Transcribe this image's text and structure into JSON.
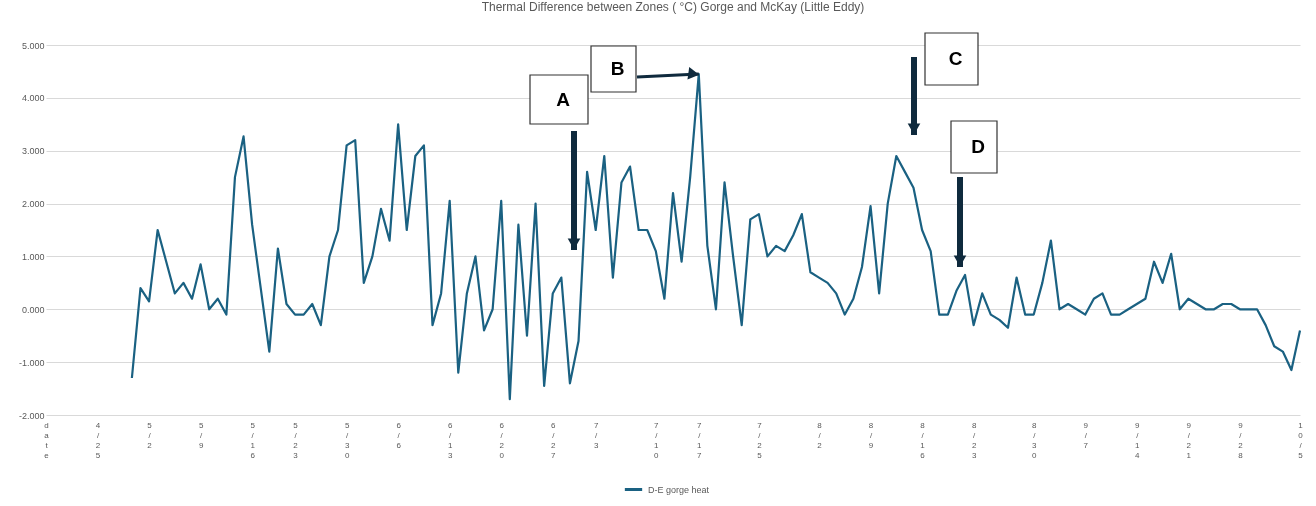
{
  "chart_data": {
    "type": "line",
    "title": "Thermal Difference between Zones ( °C) Gorge and McKay (Little Eddy)",
    "categories": [
      "date",
      null,
      null,
      null,
      null,
      null,
      "4/25",
      null,
      null,
      null,
      null,
      null,
      "5/2",
      null,
      null,
      null,
      null,
      null,
      "5/9",
      null,
      null,
      null,
      null,
      null,
      "5/16",
      null,
      null,
      null,
      null,
      "5/23",
      null,
      null,
      null,
      null,
      null,
      "5/30",
      null,
      null,
      null,
      null,
      null,
      "6/6",
      null,
      null,
      null,
      null,
      null,
      "6/13",
      null,
      null,
      null,
      null,
      null,
      "6/20",
      null,
      null,
      null,
      null,
      null,
      "6/27",
      null,
      null,
      null,
      null,
      "7/3",
      null,
      null,
      null,
      null,
      null,
      null,
      "7/10",
      null,
      null,
      null,
      null,
      "7/17",
      null,
      null,
      null,
      null,
      null,
      null,
      "7/25",
      null,
      null,
      null,
      null,
      null,
      null,
      "8/2",
      null,
      null,
      null,
      null,
      null,
      "8/9",
      null,
      null,
      null,
      null,
      null,
      "8/16",
      null,
      null,
      null,
      null,
      null,
      "8/23",
      null,
      null,
      null,
      null,
      null,
      null,
      "8/30",
      null,
      null,
      null,
      null,
      null,
      "9/7",
      null,
      null,
      null,
      null,
      null,
      "9/14",
      null,
      null,
      null,
      null,
      null,
      "9/21",
      null,
      null,
      null,
      null,
      null,
      "9/28",
      null,
      null,
      null,
      null,
      null,
      null,
      "10/5"
    ],
    "series": [
      {
        "name": "D-E gorge heat",
        "color": "#1a6182",
        "values": [
          null,
          null,
          null,
          null,
          null,
          null,
          null,
          null,
          null,
          null,
          -1.3,
          0.4,
          0.15,
          1.5,
          0.9,
          0.3,
          0.5,
          0.2,
          0.85,
          0.0,
          0.2,
          -0.1,
          2.5,
          3.27,
          1.6,
          0.4,
          -0.8,
          1.15,
          0.1,
          -0.1,
          -0.1,
          0.1,
          -0.3,
          1.0,
          1.5,
          3.1,
          3.2,
          0.5,
          1.0,
          1.9,
          1.3,
          3.5,
          1.5,
          2.9,
          3.1,
          -0.3,
          0.3,
          2.05,
          -1.2,
          0.3,
          1.0,
          -0.4,
          0.0,
          2.05,
          -1.7,
          1.6,
          -0.5,
          2.0,
          -1.45,
          0.3,
          0.6,
          -1.4,
          -0.6,
          2.6,
          1.5,
          2.9,
          0.6,
          2.4,
          2.7,
          1.5,
          1.5,
          1.1,
          0.2,
          2.2,
          0.9,
          2.5,
          4.45,
          1.2,
          0.0,
          2.4,
          1.0,
          -0.3,
          1.7,
          1.8,
          1.0,
          1.2,
          1.1,
          1.4,
          1.8,
          0.7,
          0.6,
          0.5,
          0.3,
          -0.1,
          0.2,
          0.8,
          1.95,
          0.3,
          2.0,
          2.9,
          2.6,
          2.3,
          1.5,
          1.1,
          -0.1,
          -0.1,
          0.35,
          0.65,
          -0.3,
          0.3,
          -0.1,
          -0.2,
          -0.35,
          0.6,
          -0.1,
          -0.1,
          0.5,
          1.3,
          0.0,
          0.1,
          0.0,
          -0.1,
          0.2,
          0.3,
          -0.1,
          -0.1,
          0.0,
          0.1,
          0.2,
          0.9,
          0.5,
          1.05,
          0.0,
          0.2,
          0.1,
          0.0,
          0.0,
          0.1,
          0.1,
          0.0,
          0.0,
          0.0,
          -0.3,
          -0.7,
          -0.8,
          -1.15,
          -0.4
        ]
      }
    ],
    "ylim": [
      -2,
      5
    ],
    "yticks": [
      {
        "value": -2,
        "label": "-2.000"
      },
      {
        "value": -1,
        "label": "-1.000"
      },
      {
        "value": 0,
        "label": "0.000"
      },
      {
        "value": 1,
        "label": "1.000"
      },
      {
        "value": 2,
        "label": "2.000"
      },
      {
        "value": 3,
        "label": "3.000"
      },
      {
        "value": 4,
        "label": "4.000"
      },
      {
        "value": 5,
        "label": "5.000"
      }
    ],
    "grid": "y",
    "legend": "bottom",
    "annotations": [
      "A",
      {
        "text": "B",
        "x": "7/17",
        "y": 4.45
      },
      "C",
      "D"
    ]
  }
}
